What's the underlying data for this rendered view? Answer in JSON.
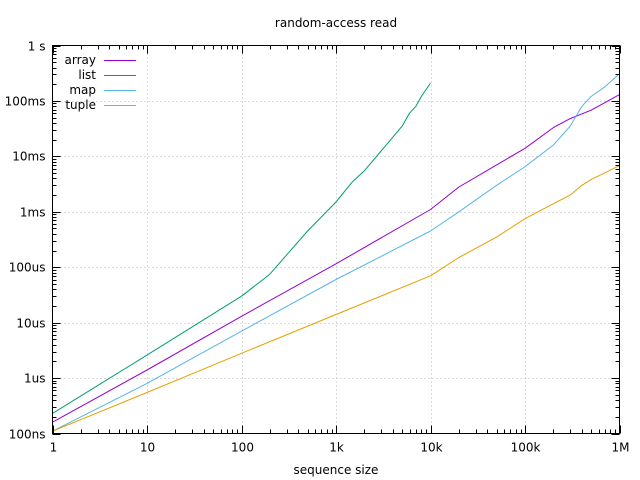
{
  "chart_data": {
    "type": "line",
    "title": "random-access read",
    "xlabel": "sequence size",
    "ylabel": "",
    "x_scale": "log",
    "y_scale": "log",
    "xlim": [
      1,
      1000000
    ],
    "ylim": [
      1e-07,
      1
    ],
    "grid": true,
    "legend_position": "top-left",
    "x_ticks": [
      {
        "value": 1,
        "label": "1"
      },
      {
        "value": 10,
        "label": "10"
      },
      {
        "value": 100,
        "label": "100"
      },
      {
        "value": 1000,
        "label": "1k"
      },
      {
        "value": 10000,
        "label": "10k"
      },
      {
        "value": 100000,
        "label": "100k"
      },
      {
        "value": 1000000,
        "label": "1M"
      }
    ],
    "y_ticks": [
      {
        "value": 1e-07,
        "label": "100ns"
      },
      {
        "value": 1e-06,
        "label": "1us"
      },
      {
        "value": 1e-05,
        "label": "10us"
      },
      {
        "value": 0.0001,
        "label": "100us"
      },
      {
        "value": 0.001,
        "label": "1ms"
      },
      {
        "value": 0.01,
        "label": "10ms"
      },
      {
        "value": 0.1,
        "label": "100ms"
      },
      {
        "value": 1,
        "label": "1 s"
      }
    ],
    "series": [
      {
        "name": "array",
        "color": "#9400d3",
        "x": [
          1,
          10,
          100,
          1000,
          10000,
          20000,
          50000,
          100000,
          200000,
          300000,
          500000,
          1000000
        ],
        "y": [
          1.6e-07,
          1.4e-06,
          1.3e-05,
          0.000115,
          0.0011,
          0.0028,
          0.007,
          0.014,
          0.033,
          0.048,
          0.068,
          0.13
        ]
      },
      {
        "name": "list",
        "color": "#009e73",
        "x": [
          1,
          10,
          100,
          200,
          500,
          1000,
          1500,
          2000,
          3000,
          5000,
          6000,
          7000,
          8000,
          10000
        ],
        "y": [
          2.3e-07,
          2.6e-06,
          3e-05,
          7.5e-05,
          0.00045,
          0.0015,
          0.0035,
          0.0055,
          0.0125,
          0.035,
          0.06,
          0.08,
          0.12,
          0.21
        ]
      },
      {
        "name": "map",
        "color": "#56b4e9",
        "x": [
          1,
          10,
          100,
          1000,
          10000,
          20000,
          50000,
          100000,
          200000,
          300000,
          400000,
          500000,
          700000,
          1000000
        ],
        "y": [
          1.1e-07,
          8e-07,
          7e-06,
          6e-05,
          0.00045,
          0.001,
          0.003,
          0.0065,
          0.016,
          0.035,
          0.08,
          0.12,
          0.18,
          0.31
        ]
      },
      {
        "name": "tuple",
        "color": "#e69f00",
        "x": [
          1,
          10,
          100,
          1000,
          10000,
          20000,
          50000,
          100000,
          200000,
          300000,
          400000,
          500000,
          1000000
        ],
        "y": [
          1.1e-07,
          5.5e-07,
          2.8e-06,
          1.4e-05,
          7e-05,
          0.00015,
          0.00035,
          0.00075,
          0.0014,
          0.002,
          0.003,
          0.0038,
          0.0068
        ]
      }
    ]
  }
}
